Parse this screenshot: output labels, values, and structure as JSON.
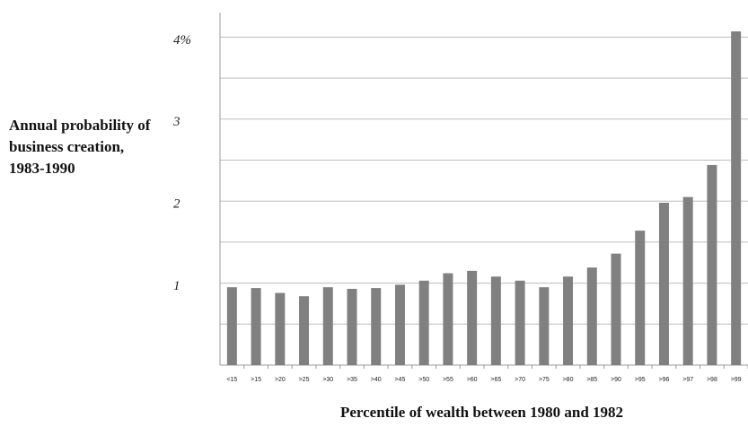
{
  "chart_data": {
    "type": "bar",
    "y_label": "Annual probability of business creation, 1983-1990",
    "x_label": "Percentile of wealth between 1980 and 1982",
    "categories": [
      "<15",
      ">15",
      ">20",
      ">25",
      ">30",
      ">35",
      ">40",
      ">45",
      ">50",
      ">55",
      ">60",
      ">65",
      ">70",
      ">75",
      ">80",
      ">85",
      ">90",
      ">95",
      ">96",
      ">97",
      ">98",
      ">99"
    ],
    "values": [
      0.95,
      0.94,
      0.88,
      0.84,
      0.95,
      0.93,
      0.94,
      0.98,
      1.03,
      1.12,
      1.15,
      1.08,
      1.03,
      0.95,
      1.08,
      1.19,
      1.36,
      1.64,
      1.98,
      2.05,
      2.44,
      4.07
    ],
    "color": "#808080",
    "ylim": [
      0,
      4.3
    ],
    "yticks": [
      1,
      2,
      3,
      {
        "value": 4,
        "label": "4%"
      }
    ],
    "minor_yticks": [
      0.5,
      1.5,
      2.5,
      3.5
    ],
    "grid": true
  }
}
